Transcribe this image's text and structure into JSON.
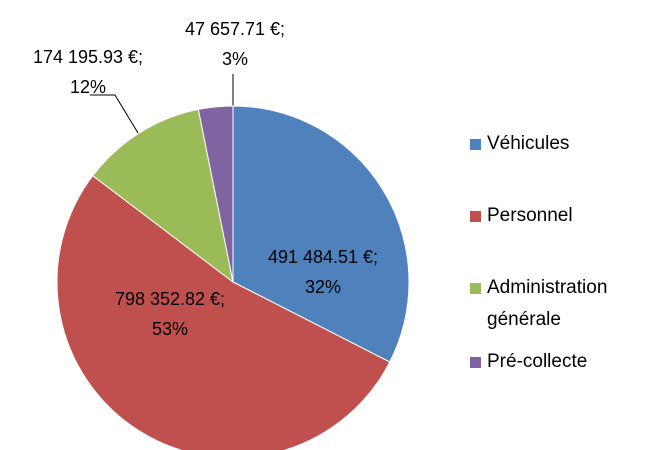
{
  "chart_data": {
    "type": "pie",
    "categories": [
      "Véhicules",
      "Personnel",
      "Administration générale",
      "Pré-collecte"
    ],
    "values": [
      491484.51,
      798352.82,
      174195.93,
      47657.71
    ],
    "value_labels": [
      "491 484.51 €;",
      "798 352.82 €;",
      "174 195.93 €;",
      "47 657.71 €;"
    ],
    "percentages": [
      32,
      53,
      12,
      3
    ],
    "percentage_labels": [
      "32%",
      "53%",
      "12%",
      "3%"
    ],
    "colors": [
      "#4f81bd",
      "#c0504d",
      "#9bbb59",
      "#8064a2"
    ],
    "legend": "right"
  }
}
